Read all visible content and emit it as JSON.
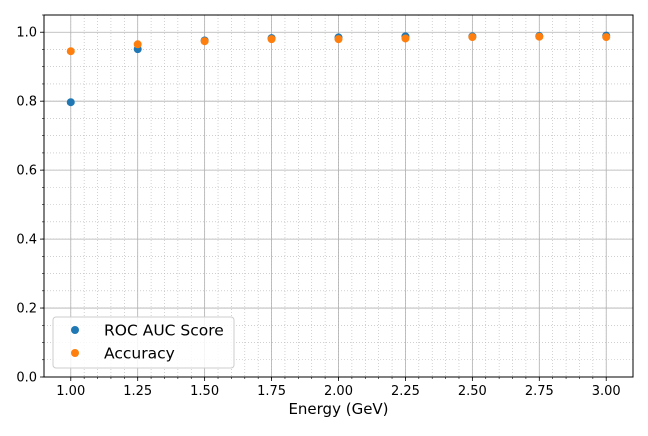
{
  "chart_data": {
    "type": "scatter",
    "title": "",
    "xlabel": "Energy (GeV)",
    "ylabel": "",
    "x": [
      1.0,
      1.25,
      1.5,
      1.75,
      2.0,
      2.25,
      2.5,
      2.75,
      3.0
    ],
    "series": [
      {
        "name": "ROC AUC Score",
        "color": "#1f77b4",
        "values": [
          0.797,
          0.951,
          0.976,
          0.983,
          0.985,
          0.988,
          0.988,
          0.989,
          0.99
        ]
      },
      {
        "name": "Accuracy",
        "color": "#ff7f0e",
        "values": [
          0.945,
          0.965,
          0.974,
          0.98,
          0.98,
          0.982,
          0.986,
          0.987,
          0.986
        ]
      }
    ],
    "xlim": [
      0.9,
      3.1
    ],
    "ylim": [
      0.0,
      1.05
    ],
    "xticks": [
      1.0,
      1.25,
      1.5,
      1.75,
      2.0,
      2.25,
      2.5,
      2.75,
      3.0
    ],
    "xtick_labels": [
      "1.00",
      "1.25",
      "1.50",
      "1.75",
      "2.00",
      "2.25",
      "2.50",
      "2.75",
      "3.00"
    ],
    "yticks": [
      0.0,
      0.2,
      0.4,
      0.6,
      0.8,
      1.0
    ],
    "ytick_labels": [
      "0.0",
      "0.2",
      "0.4",
      "0.6",
      "0.8",
      "1.0"
    ],
    "grid": {
      "major": true,
      "minor": true
    },
    "legend": "lower-left"
  }
}
